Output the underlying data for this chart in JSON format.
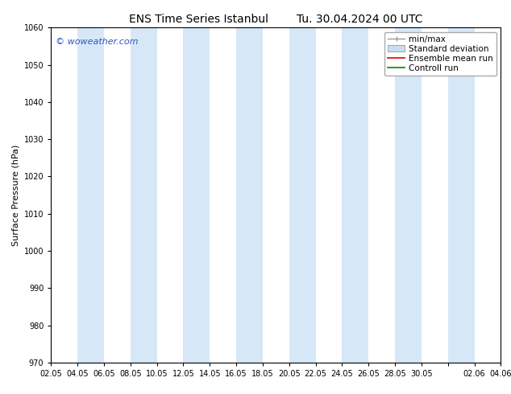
{
  "title_left": "ENS Time Series Istanbul",
  "title_right": "Tu. 30.04.2024 00 UTC",
  "ylabel": "Surface Pressure (hPa)",
  "ylim": [
    970,
    1060
  ],
  "yticks": [
    970,
    980,
    990,
    1000,
    1010,
    1020,
    1030,
    1040,
    1050,
    1060
  ],
  "x_labels": [
    "02.05",
    "04.05",
    "06.05",
    "08.05",
    "10.05",
    "12.05",
    "14.05",
    "16.05",
    "18.05",
    "20.05",
    "22.05",
    "24.05",
    "26.05",
    "28.05",
    "30.05",
    "",
    "02.06",
    "04.06"
  ],
  "band_color": "#d6e8f7",
  "background_color": "#ffffff",
  "watermark": "© woweather.com",
  "watermark_color": "#3355bb",
  "legend_items": [
    "min/max",
    "Standard deviation",
    "Ensemble mean run",
    "Controll run"
  ],
  "minmax_color": "#999999",
  "std_facecolor": "#c8ddf0",
  "std_edgecolor": "#aaaaaa",
  "ens_color": "#dd0000",
  "ctrl_color": "#008800",
  "title_fontsize": 10,
  "tick_fontsize": 7,
  "ylabel_fontsize": 8,
  "legend_fontsize": 7.5
}
